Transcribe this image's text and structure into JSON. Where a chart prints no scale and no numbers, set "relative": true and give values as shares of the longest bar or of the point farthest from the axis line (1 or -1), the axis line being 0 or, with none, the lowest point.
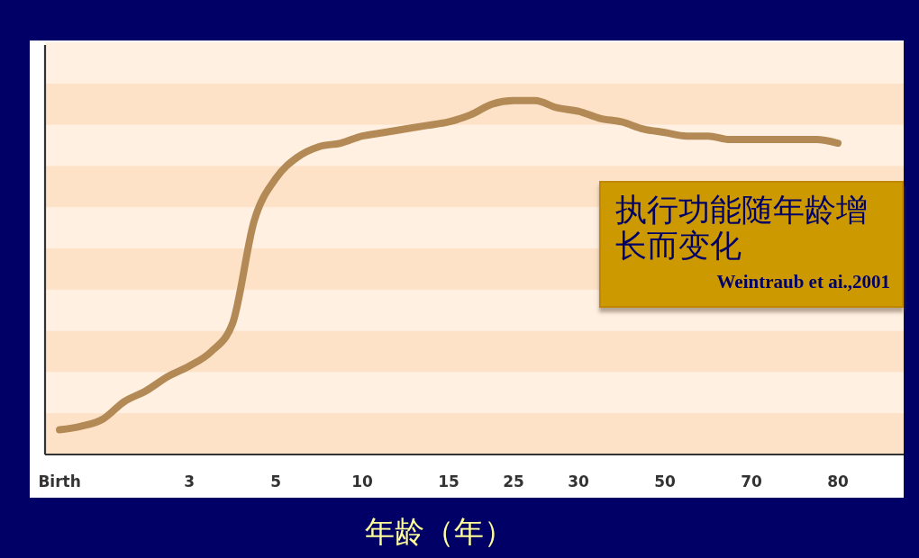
{
  "chart_data": {
    "type": "line",
    "title": "执行功能随年龄增长而变化",
    "xlabel": "年龄（年）",
    "annotations": [
      "Weintraub et ai.,2001"
    ],
    "relative": true,
    "categories": [
      "Birth",
      null,
      null,
      null,
      null,
      null,
      "3",
      null,
      null,
      null,
      "5",
      null,
      null,
      null,
      "10",
      null,
      null,
      null,
      "15",
      null,
      null,
      "25",
      null,
      null,
      "30",
      null,
      null,
      null,
      "50",
      null,
      null,
      null,
      "70",
      null,
      null,
      null,
      "80"
    ],
    "series": [
      {
        "color": "#b38a55",
        "values": [
          0.07,
          0.08,
          0.1,
          0.15,
          0.18,
          0.22,
          0.25,
          0.29,
          0.37,
          0.66,
          0.78,
          0.84,
          0.87,
          0.88,
          0.9,
          0.91,
          0.92,
          0.93,
          0.94,
          0.96,
          0.99,
          1,
          1,
          0.98,
          0.97,
          0.95,
          0.94,
          0.92,
          0.91,
          0.9,
          0.9,
          0.89,
          0.89,
          0.89,
          0.89,
          0.89,
          0.88
        ]
      }
    ]
  }
}
